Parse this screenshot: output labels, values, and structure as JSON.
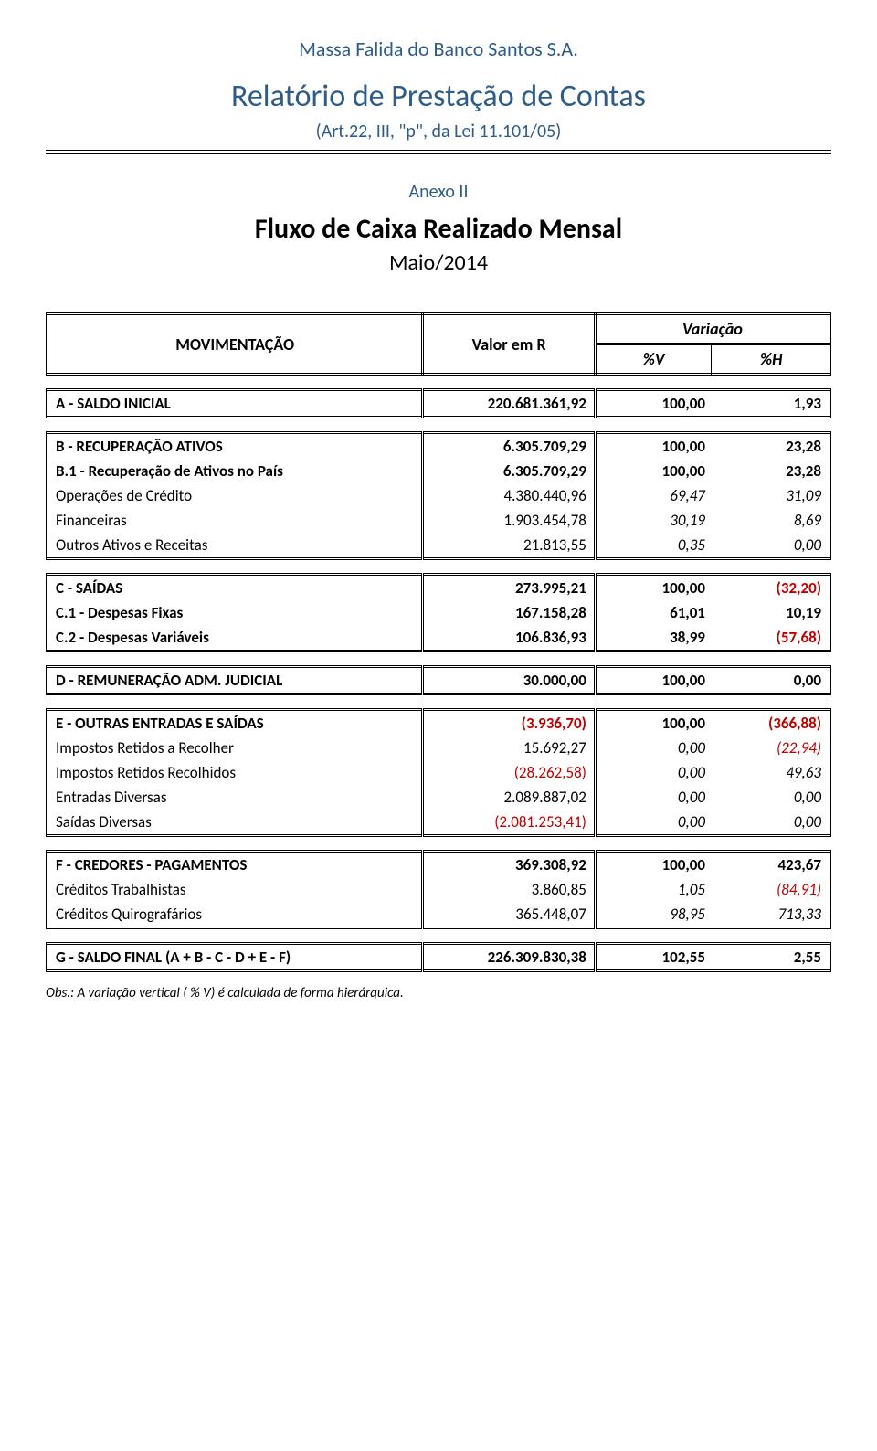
{
  "company_name": "Massa Falida do Banco Santos S.A.",
  "report_title": "Relatório de Prestação de Contas",
  "law_ref": "(Art.22, III, \"p\", da Lei 11.101/05)",
  "annex": "Anexo II",
  "flow_title": "Fluxo de Caixa Realizado Mensal",
  "period": "Maio/2014",
  "headers": {
    "mov": "MOVIMENTAÇÃO",
    "valor": "Valor em R",
    "var": "Variação",
    "pv": "%V",
    "ph": "%H"
  },
  "a": {
    "label": "A - SALDO INICIAL",
    "value": "220.681.361,92",
    "pv": "100,00",
    "ph": "1,93"
  },
  "b": {
    "main": {
      "label": "B - RECUPERAÇÃO ATIVOS",
      "value": "6.305.709,29",
      "pv": "100,00",
      "ph": "23,28"
    },
    "b1": {
      "label": "B.1 - Recuperação de Ativos no País",
      "value": "6.305.709,29",
      "pv": "100,00",
      "ph": "23,28"
    },
    "rows": [
      {
        "label": "Operações de Crédito",
        "value": "4.380.440,96",
        "pv": "69,47",
        "ph": "31,09"
      },
      {
        "label": "Financeiras",
        "value": "1.903.454,78",
        "pv": "30,19",
        "ph": "8,69"
      },
      {
        "label": "Outros Ativos e Receitas",
        "value": "21.813,55",
        "pv": "0,35",
        "ph": "0,00"
      }
    ]
  },
  "c": {
    "main": {
      "label": "C - SAÍDAS",
      "value": "273.995,21",
      "pv": "100,00",
      "ph": "(32,20)",
      "ph_neg": true
    },
    "rows": [
      {
        "label": "C.1 - Despesas Fixas",
        "value": "167.158,28",
        "pv": "61,01",
        "ph": "10,19"
      },
      {
        "label": "C.2 - Despesas Variáveis",
        "value": "106.836,93",
        "pv": "38,99",
        "ph": "(57,68)",
        "ph_neg": true
      }
    ]
  },
  "d": {
    "label": "D - REMUNERAÇÃO ADM. JUDICIAL",
    "value": "30.000,00",
    "pv": "100,00",
    "ph": "0,00"
  },
  "e": {
    "main": {
      "label": "E - OUTRAS ENTRADAS E SAÍDAS",
      "value": "(3.936,70)",
      "value_neg": true,
      "pv": "100,00",
      "ph": "(366,88)",
      "ph_neg": true
    },
    "rows": [
      {
        "label": "Impostos Retidos a Recolher",
        "value": "15.692,27",
        "pv": "0,00",
        "ph": "(22,94)",
        "ph_neg": true
      },
      {
        "label": "Impostos Retidos Recolhidos",
        "value": "(28.262,58)",
        "value_neg": true,
        "pv": "0,00",
        "ph": "49,63"
      },
      {
        "label": "Entradas Diversas",
        "value": "2.089.887,02",
        "pv": "0,00",
        "ph": "0,00"
      },
      {
        "label": "Saídas Diversas",
        "value": "(2.081.253,41)",
        "value_neg": true,
        "pv": "0,00",
        "ph": "0,00"
      }
    ]
  },
  "f": {
    "main": {
      "label": "F - CREDORES - PAGAMENTOS",
      "value": "369.308,92",
      "pv": "100,00",
      "ph": "423,67"
    },
    "rows": [
      {
        "label": "Créditos Trabalhistas",
        "value": "3.860,85",
        "pv": "1,05",
        "ph": "(84,91)",
        "ph_neg": true
      },
      {
        "label": "Créditos Quirografários",
        "value": "365.448,07",
        "pv": "98,95",
        "ph": "713,33"
      }
    ]
  },
  "g": {
    "label": "G - SALDO FINAL (A + B - C - D + E - F)",
    "value": "226.309.830,38",
    "pv": "102,55",
    "ph": "2,55"
  },
  "note": "Obs.: A variação vertical ( % V) é calculada de forma hierárquica."
}
